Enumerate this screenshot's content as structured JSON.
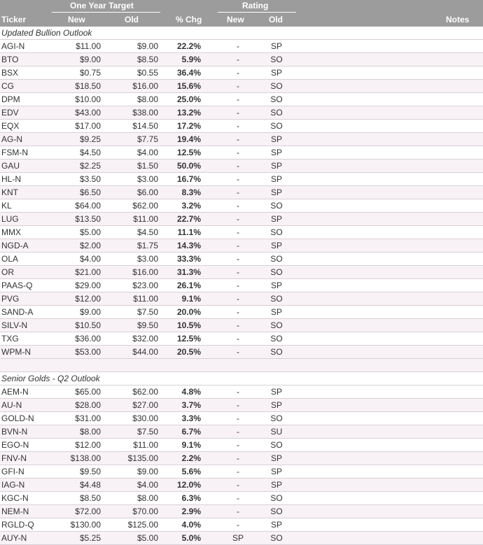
{
  "header": {
    "group_target": "One Year Target",
    "group_rating": "Rating",
    "col_ticker": "Ticker",
    "col_new": "New",
    "col_old": "Old",
    "col_chg": "% Chg",
    "col_rating_new": "New",
    "col_rating_old": "Old",
    "col_notes": "Notes"
  },
  "sections": [
    {
      "title": "Updated Bullion Outlook",
      "rows": [
        [
          "AGI-N",
          "$11.00",
          "$9.00",
          "22.2%",
          "-",
          "SP"
        ],
        [
          "BTO",
          "$9.00",
          "$8.50",
          "5.9%",
          "-",
          "SO"
        ],
        [
          "BSX",
          "$0.75",
          "$0.55",
          "36.4%",
          "-",
          "SP"
        ],
        [
          "CG",
          "$18.50",
          "$16.00",
          "15.6%",
          "-",
          "SO"
        ],
        [
          "DPM",
          "$10.00",
          "$8.00",
          "25.0%",
          "-",
          "SO"
        ],
        [
          "EDV",
          "$43.00",
          "$38.00",
          "13.2%",
          "-",
          "SO"
        ],
        [
          "EQX",
          "$17.00",
          "$14.50",
          "17.2%",
          "-",
          "SO"
        ],
        [
          "AG-N",
          "$9.25",
          "$7.75",
          "19.4%",
          "-",
          "SP"
        ],
        [
          "FSM-N",
          "$4.50",
          "$4.00",
          "12.5%",
          "-",
          "SP"
        ],
        [
          "GAU",
          "$2.25",
          "$1.50",
          "50.0%",
          "-",
          "SP"
        ],
        [
          "HL-N",
          "$3.50",
          "$3.00",
          "16.7%",
          "-",
          "SP"
        ],
        [
          "KNT",
          "$6.50",
          "$6.00",
          "8.3%",
          "-",
          "SP"
        ],
        [
          "KL",
          "$64.00",
          "$62.00",
          "3.2%",
          "-",
          "SO"
        ],
        [
          "LUG",
          "$13.50",
          "$11.00",
          "22.7%",
          "-",
          "SP"
        ],
        [
          "MMX",
          "$5.00",
          "$4.50",
          "11.1%",
          "-",
          "SO"
        ],
        [
          "NGD-A",
          "$2.00",
          "$1.75",
          "14.3%",
          "-",
          "SP"
        ],
        [
          "OLA",
          "$4.00",
          "$3.00",
          "33.3%",
          "-",
          "SO"
        ],
        [
          "OR",
          "$21.00",
          "$16.00",
          "31.3%",
          "-",
          "SO"
        ],
        [
          "PAAS-Q",
          "$29.00",
          "$23.00",
          "26.1%",
          "-",
          "SP"
        ],
        [
          "PVG",
          "$12.00",
          "$11.00",
          "9.1%",
          "-",
          "SO"
        ],
        [
          "SAND-A",
          "$9.00",
          "$7.50",
          "20.0%",
          "-",
          "SP"
        ],
        [
          "SILV-N",
          "$10.50",
          "$9.50",
          "10.5%",
          "-",
          "SO"
        ],
        [
          "TXG",
          "$36.00",
          "$32.00",
          "12.5%",
          "-",
          "SO"
        ],
        [
          "WPM-N",
          "$53.00",
          "$44.00",
          "20.5%",
          "-",
          "SO"
        ]
      ]
    },
    {
      "title": "Senior Golds - Q2 Outlook",
      "rows": [
        [
          "AEM-N",
          "$65.00",
          "$62.00",
          "4.8%",
          "-",
          "SP"
        ],
        [
          "AU-N",
          "$28.00",
          "$27.00",
          "3.7%",
          "-",
          "SP"
        ],
        [
          "GOLD-N",
          "$31.00",
          "$30.00",
          "3.3%",
          "-",
          "SO"
        ],
        [
          "BVN-N",
          "$8.00",
          "$7.50",
          "6.7%",
          "-",
          "SU"
        ],
        [
          "EGO-N",
          "$12.00",
          "$11.00",
          "9.1%",
          "-",
          "SO"
        ],
        [
          "FNV-N",
          "$138.00",
          "$135.00",
          "2.2%",
          "-",
          "SP"
        ],
        [
          "GFI-N",
          "$9.50",
          "$9.00",
          "5.6%",
          "-",
          "SP"
        ],
        [
          "IAG-N",
          "$4.48",
          "$4.00",
          "12.0%",
          "-",
          "SP"
        ],
        [
          "KGC-N",
          "$8.50",
          "$8.00",
          "6.3%",
          "-",
          "SO"
        ],
        [
          "NEM-N",
          "$72.00",
          "$70.00",
          "2.9%",
          "-",
          "SO"
        ],
        [
          "RGLD-Q",
          "$130.00",
          "$125.00",
          "4.0%",
          "-",
          "SP"
        ],
        [
          "AUY-N",
          "$5.25",
          "$5.00",
          "5.0%",
          "SP",
          "SO"
        ]
      ]
    }
  ]
}
